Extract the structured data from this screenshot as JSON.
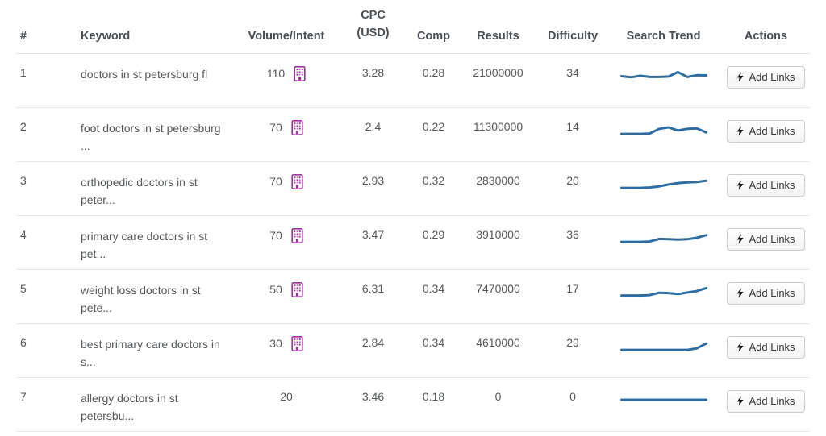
{
  "table": {
    "header": {
      "rank": "#",
      "keyword": "Keyword",
      "volume": "Volume/Intent",
      "cpc": "CPC\n(USD)",
      "comp": "Comp",
      "results": "Results",
      "difficulty": "Difficulty",
      "trend": "Search Trend",
      "actions": "Actions"
    },
    "action_button": {
      "label": "Add Links",
      "icon": "bolt-icon"
    },
    "volume_intent_icon": "building-icon",
    "rows": [
      {
        "num": "1",
        "keyword": "doctors in st petersburg fl",
        "volume": "110",
        "has_intent_icon": true,
        "cpc": "3.28",
        "comp": "0.28",
        "results": "21000000",
        "difficulty": "34",
        "trend": [
          48,
          42,
          50,
          44,
          44,
          46,
          70,
          44,
          53,
          52
        ]
      },
      {
        "num": "2",
        "keyword": "foot doctors in st petersburg ...",
        "volume": "70",
        "has_intent_icon": true,
        "cpc": "2.4",
        "comp": "0.22",
        "results": "11300000",
        "difficulty": "14",
        "trend": [
          28,
          28,
          28,
          30,
          55,
          63,
          46,
          55,
          58,
          36
        ]
      },
      {
        "num": "3",
        "keyword": "orthopedic doctors in st peter...",
        "volume": "70",
        "has_intent_icon": true,
        "cpc": "2.93",
        "comp": "0.32",
        "results": "2830000",
        "difficulty": "20",
        "trend": [
          28,
          28,
          28,
          30,
          36,
          46,
          54,
          58,
          60,
          66
        ]
      },
      {
        "num": "4",
        "keyword": "primary care doctors in st pet...",
        "volume": "70",
        "has_intent_icon": true,
        "cpc": "3.47",
        "comp": "0.29",
        "results": "3910000",
        "difficulty": "36",
        "trend": [
          28,
          28,
          28,
          30,
          44,
          42,
          40,
          42,
          50,
          64
        ]
      },
      {
        "num": "5",
        "keyword": "weight loss doctors in st pete...",
        "volume": "50",
        "has_intent_icon": true,
        "cpc": "6.31",
        "comp": "0.34",
        "results": "7470000",
        "difficulty": "17",
        "trend": [
          30,
          30,
          30,
          32,
          45,
          43,
          38,
          46,
          54,
          70
        ]
      },
      {
        "num": "6",
        "keyword": "best primary care doctors in s...",
        "volume": "30",
        "has_intent_icon": true,
        "cpc": "2.84",
        "comp": "0.34",
        "results": "4610000",
        "difficulty": "29",
        "trend": [
          28,
          28,
          28,
          28,
          28,
          28,
          28,
          28,
          36,
          62
        ]
      },
      {
        "num": "7",
        "keyword": "allergy doctors in st petersbu...",
        "volume": "20",
        "has_intent_icon": false,
        "cpc": "3.46",
        "comp": "0.18",
        "results": "0",
        "difficulty": "0",
        "trend": [
          50,
          50,
          50,
          50,
          50,
          50,
          50,
          50,
          50,
          50
        ]
      }
    ]
  },
  "colors": {
    "trend_line": "#2E6DA4",
    "intent_icon_purple": "#993399",
    "intent_icon_pink": "#CC66CC",
    "row_border": "#E7E7E7",
    "header_text": "#4A4F54",
    "body_text": "#53575A",
    "button_border": "#CCCCCC",
    "button_text": "#333333",
    "bolt_fill": "#111111"
  }
}
